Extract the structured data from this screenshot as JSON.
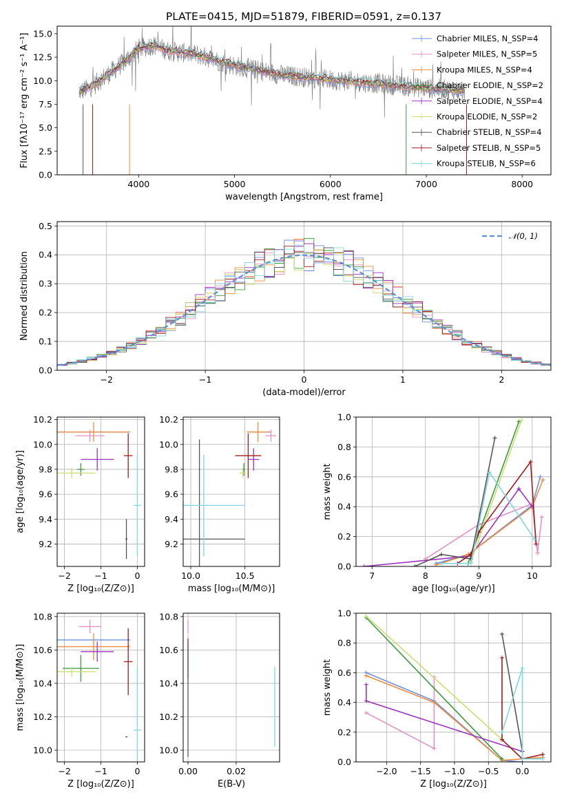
{
  "figure": {
    "title": "PLATE=0415, MJD=51879, FIBERID=0591, z=0.137",
    "colors": [
      "#6f8fe6",
      "#e68fc4",
      "#ef8a3a",
      "#3a9a3a",
      "#9b30c0",
      "#c9e070",
      "#555555",
      "#a01b1b",
      "#7fd6dc"
    ]
  },
  "chart_data": [
    {
      "id": "spectrum",
      "type": "line",
      "title": "PLATE=0415, MJD=51879, FIBERID=0591, z=0.137",
      "xlabel": "wavelength [Angstrom, rest frame]",
      "ylabel": "Flux [fλ10⁻¹⁷ erg cm⁻² s⁻¹ A⁻¹]",
      "xlim": [
        3150,
        8300
      ],
      "ylim": [
        0,
        15.8
      ],
      "xticks": [
        4000,
        5000,
        6000,
        7000,
        8000
      ],
      "yticks": [
        0.0,
        2.5,
        5.0,
        7.5,
        10.0,
        12.5,
        15.0
      ],
      "grid": false,
      "legend_position": "top-right",
      "legend": [
        "Chabrier MILES, N_SSP=4",
        "Salpeter MILES, N_SSP=5",
        "Kroupa MILES, N_SSP=4",
        "Chabrier ELODIE, N_SSP=2",
        "Salpeter ELODIE, N_SSP=4",
        "Kroupa ELODIE, N_SSP=2",
        "Chabrier STELIB, N_SSP=4",
        "Salpeter STELIB, N_SSP=5",
        "Kroupa STELIB, N_SSP=6"
      ],
      "data_color": "#808080",
      "continuum": {
        "x": [
          3380,
          3500,
          3700,
          3850,
          4000,
          4150,
          4300,
          4600,
          5000,
          5500,
          6000,
          6500,
          7000,
          7400
        ],
        "y": [
          8.8,
          9.3,
          10.8,
          12.0,
          13.4,
          13.8,
          13.2,
          12.8,
          11.6,
          10.6,
          10.1,
          9.7,
          9.2,
          8.9
        ]
      }
    },
    {
      "id": "residuals",
      "type": "line",
      "xlabel": "(data-model)/error",
      "ylabel": "Normed distribution",
      "xlim": [
        -2.5,
        2.5
      ],
      "ylim": [
        0,
        0.515
      ],
      "xticks": [
        -2,
        -1,
        0,
        1,
        2
      ],
      "yticks": [
        0.0,
        0.1,
        0.2,
        0.3,
        0.4,
        0.5
      ],
      "grid": true,
      "legend_position": "top-right",
      "gaussian_label": "𝒩(0, 1)",
      "gaussian_color": "#5b8fd9"
    },
    {
      "id": "age-vs-Z",
      "type": "scatter",
      "xlabel": "Z [log₁₀(Z/Z⊙)]",
      "ylabel": "age  [log₁₀(age/yr)]",
      "xlim": [
        -2.2,
        0.2
      ],
      "ylim": [
        9.02,
        10.22
      ],
      "xticks": [
        -2,
        -1,
        0
      ],
      "yticks": [
        9.2,
        9.4,
        9.6,
        9.8,
        10.0,
        10.2
      ],
      "grid": true,
      "series": [
        {
          "color": "#6f8fe6",
          "x": -1.2,
          "xerr": 1.0,
          "y": 10.1,
          "yerr": 0.0
        },
        {
          "color": "#e68fc4",
          "x": -1.3,
          "xerr": 0.4,
          "y": 10.07,
          "yerr": 0.05
        },
        {
          "color": "#ef8a3a",
          "x": -1.2,
          "xerr": 1.0,
          "y": 10.1,
          "yerr": 0.08
        },
        {
          "color": "#3a9a3a",
          "x": -1.55,
          "xerr": 0.1,
          "y": 9.8,
          "yerr": 0.05
        },
        {
          "color": "#9b30c0",
          "x": -1.1,
          "xerr": 0.45,
          "y": 9.88,
          "yerr": 0.09
        },
        {
          "color": "#c9e070",
          "x": -1.8,
          "xerr": 0.65,
          "y": 9.77,
          "yerr": 0.04
        },
        {
          "color": "#555555",
          "x": -0.3,
          "xerr": 0.03,
          "y": 9.24,
          "yerr": 0.16
        },
        {
          "color": "#a01b1b",
          "x": -0.25,
          "xerr": 0.12,
          "y": 9.91,
          "yerr": 0.18
        },
        {
          "color": "#7fd6dc",
          "x": 0.0,
          "xerr": 0.1,
          "y": 9.51,
          "yerr": 0.41
        }
      ]
    },
    {
      "id": "age-vs-mass",
      "type": "scatter",
      "xlabel": "mass [log₁₀(M/M⊙)]",
      "xlim": [
        9.93,
        10.82
      ],
      "ylim": [
        9.02,
        10.22
      ],
      "xticks": [
        10.0,
        10.5
      ],
      "yticks": [
        9.2,
        9.4,
        9.6,
        9.8,
        10.0,
        10.2
      ],
      "grid": true,
      "series": [
        {
          "color": "#6f8fe6",
          "x": 10.66,
          "xerr": 0.08,
          "y": 10.1,
          "yerr": 0.0
        },
        {
          "color": "#e68fc4",
          "x": 10.74,
          "xerr": 0.05,
          "y": 10.07,
          "yerr": 0.05
        },
        {
          "color": "#ef8a3a",
          "x": 10.62,
          "xerr": 0.1,
          "y": 10.1,
          "yerr": 0.08
        },
        {
          "color": "#3a9a3a",
          "x": 10.49,
          "xerr": 0.01,
          "y": 9.8,
          "yerr": 0.05
        },
        {
          "color": "#9b30c0",
          "x": 10.58,
          "xerr": 0.05,
          "y": 9.88,
          "yerr": 0.09
        },
        {
          "color": "#c9e070",
          "x": 10.48,
          "xerr": 0.03,
          "y": 9.77,
          "yerr": 0.04
        },
        {
          "color": "#555555",
          "x": 10.08,
          "xerr": 0.42,
          "y": 9.24,
          "yerr": 0.8
        },
        {
          "color": "#a01b1b",
          "x": 10.53,
          "xerr": 0.12,
          "y": 9.91,
          "yerr": 0.18
        },
        {
          "color": "#7fd6dc",
          "x": 10.12,
          "xerr": 0.38,
          "y": 9.51,
          "yerr": 0.41
        }
      ]
    },
    {
      "id": "weight-vs-age",
      "type": "line",
      "xlabel": "age  [log₁₀(age/yr)]",
      "ylabel": "mass weight",
      "xlim": [
        6.7,
        10.35
      ],
      "ylim": [
        0,
        1.0
      ],
      "xticks": [
        7,
        8,
        9,
        10
      ],
      "yticks": [
        0.0,
        0.2,
        0.4,
        0.6,
        0.8,
        1.0
      ],
      "grid": true,
      "series": [
        {
          "color": "#6f8fe6",
          "x": [
            8.2,
            8.8,
            10.0,
            10.15
          ],
          "y": [
            0.02,
            0.08,
            0.41,
            0.6
          ]
        },
        {
          "color": "#e68fc4",
          "x": [
            8.0,
            9.0,
            10.0,
            10.1,
            10.18
          ],
          "y": [
            0.05,
            0.28,
            0.42,
            0.09,
            0.33
          ]
        },
        {
          "color": "#ef8a3a",
          "x": [
            8.2,
            8.8,
            10.0,
            10.2
          ],
          "y": [
            0.01,
            0.08,
            0.4,
            0.58
          ]
        },
        {
          "color": "#3a9a3a",
          "x": [
            8.8,
            9.75
          ],
          "y": [
            0.02,
            0.97
          ]
        },
        {
          "color": "#9b30c0",
          "x": [
            6.85,
            8.85,
            9.75,
            10.0
          ],
          "y": [
            0.0,
            0.07,
            0.52,
            0.4
          ]
        },
        {
          "color": "#c9e070",
          "x": [
            8.85,
            9.8
          ],
          "y": [
            0.03,
            0.98
          ]
        },
        {
          "color": "#555555",
          "x": [
            7.8,
            8.3,
            8.85,
            9.3
          ],
          "y": [
            0.0,
            0.08,
            0.05,
            0.86
          ]
        },
        {
          "color": "#a01b1b",
          "x": [
            8.6,
            8.85,
            9.0,
            9.97,
            10.07
          ],
          "y": [
            0.02,
            0.08,
            0.23,
            0.7,
            0.15
          ]
        },
        {
          "color": "#7fd6dc",
          "x": [
            8.3,
            8.85,
            9.2,
            10.05
          ],
          "y": [
            0.02,
            0.02,
            0.63,
            0.18
          ]
        }
      ]
    },
    {
      "id": "mass-vs-Z",
      "type": "scatter",
      "xlabel": "Z [log₁₀(Z/Z⊙)]",
      "ylabel": "mass [log₁₀(M/M⊙)]",
      "xlim": [
        -2.2,
        0.2
      ],
      "ylim": [
        9.93,
        10.82
      ],
      "xticks": [
        -2,
        -1,
        0
      ],
      "yticks": [
        10.0,
        10.2,
        10.4,
        10.6,
        10.8
      ],
      "grid": true,
      "series": [
        {
          "color": "#6f8fe6",
          "x": -1.2,
          "xerr": 1.0,
          "y": 10.66,
          "yerr": 0.0
        },
        {
          "color": "#e68fc4",
          "x": -1.3,
          "xerr": 0.3,
          "y": 10.74,
          "yerr": 0.04
        },
        {
          "color": "#ef8a3a",
          "x": -1.2,
          "xerr": 1.0,
          "y": 10.62,
          "yerr": 0.08
        },
        {
          "color": "#3a9a3a",
          "x": -1.55,
          "xerr": 0.5,
          "y": 10.49,
          "yerr": 0.08
        },
        {
          "color": "#9b30c0",
          "x": -1.1,
          "xerr": 0.45,
          "y": 10.59,
          "yerr": 0.06
        },
        {
          "color": "#c9e070",
          "x": -1.8,
          "xerr": 0.65,
          "y": 10.47,
          "yerr": 0.03
        },
        {
          "color": "#555555",
          "x": -0.3,
          "xerr": 0.03,
          "y": 10.08,
          "yerr": 0.0
        },
        {
          "color": "#a01b1b",
          "x": -0.25,
          "xerr": 0.12,
          "y": 10.53,
          "yerr": 0.2
        },
        {
          "color": "#7fd6dc",
          "x": 0.0,
          "xerr": 0.1,
          "y": 10.12,
          "yerr": 0.38
        }
      ]
    },
    {
      "id": "mass-vs-EBV",
      "type": "scatter",
      "xlabel": "E(B-V)",
      "xlim": [
        -0.002,
        0.038
      ],
      "ylim": [
        9.93,
        10.82
      ],
      "xticks": [
        0.0,
        0.02
      ],
      "yticks": [
        10.0,
        10.2,
        10.4,
        10.6,
        10.8
      ],
      "grid": true,
      "series": [
        {
          "color": "#e68fc4",
          "x": 0.0,
          "xerr": 0.0,
          "y": 10.74,
          "yerr": 0.04
        },
        {
          "color": "#a01b1b",
          "x": 0.0,
          "xerr": 0.0,
          "y": 10.55,
          "yerr": 0.12
        },
        {
          "color": "#555555",
          "x": 0.0,
          "xerr": 0.0,
          "y": 10.3,
          "yerr": 0.34
        },
        {
          "color": "#7fd6dc",
          "x": 0.036,
          "xerr": 0.0,
          "y": 10.26,
          "yerr": 0.24
        }
      ]
    },
    {
      "id": "weight-vs-Z",
      "type": "line",
      "xlabel": "Z [log₁₀(Z/Z⊙)]",
      "ylabel": "mass weight",
      "xlim": [
        -2.45,
        0.42
      ],
      "ylim": [
        0,
        1.0
      ],
      "xticks": [
        -2.0,
        -1.5,
        -1.0,
        -0.5,
        0.0
      ],
      "yticks": [
        0.0,
        0.2,
        0.4,
        0.6,
        0.8,
        1.0
      ],
      "grid": true,
      "series": [
        {
          "color": "#6f8fe6",
          "x": [
            -2.3,
            -1.3,
            -0.3,
            0.0
          ],
          "y": [
            0.6,
            0.41,
            0.01,
            0.0
          ]
        },
        {
          "color": "#e68fc4",
          "x": [
            -2.3,
            -1.3,
            -1.3
          ],
          "y": [
            0.33,
            0.09,
            0.57
          ]
        },
        {
          "color": "#ef8a3a",
          "x": [
            -2.3,
            -1.3,
            -0.3,
            0.3
          ],
          "y": [
            0.58,
            0.4,
            0.01,
            0.03
          ]
        },
        {
          "color": "#3a9a3a",
          "x": [
            -2.3,
            -0.3
          ],
          "y": [
            0.97,
            0.02
          ]
        },
        {
          "color": "#9b30c0",
          "x": [
            -2.3,
            -2.3,
            0.0
          ],
          "y": [
            0.52,
            0.41,
            0.07
          ]
        },
        {
          "color": "#c9e070",
          "x": [
            -2.3,
            -0.3
          ],
          "y": [
            0.98,
            0.15
          ]
        },
        {
          "color": "#555555",
          "x": [
            -0.3,
            0.0
          ],
          "y": [
            0.86,
            0.07
          ]
        },
        {
          "color": "#a01b1b",
          "x": [
            -0.3,
            -0.3,
            0.0,
            0.3
          ],
          "y": [
            0.7,
            0.15,
            0.02,
            0.05
          ]
        },
        {
          "color": "#7fd6dc",
          "x": [
            -0.3,
            0.0,
            0.0,
            0.3
          ],
          "y": [
            0.2,
            0.63,
            0.02,
            0.02
          ]
        }
      ]
    }
  ]
}
